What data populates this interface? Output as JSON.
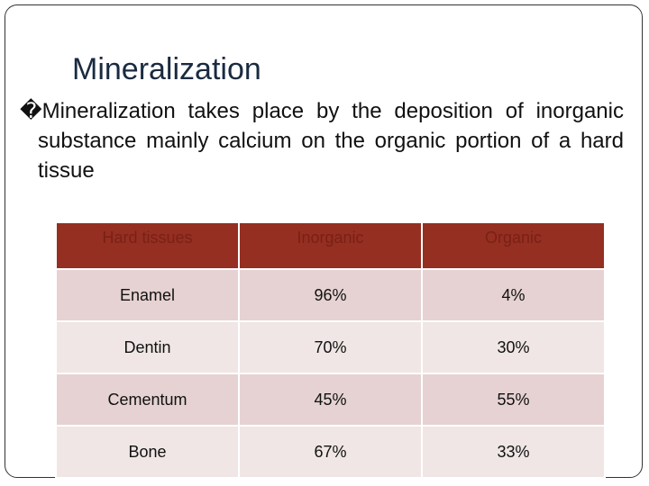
{
  "slide": {
    "title": "Mineralization",
    "body": "�Mineralization takes place by the deposition of inorganic substance mainly calcium on the organic portion of a hard tissue",
    "table": {
      "header": [
        "Hard tissues",
        "Inorganic",
        "Organic"
      ],
      "rows": [
        [
          "Enamel",
          "96%",
          "4%"
        ],
        [
          "Dentin",
          "70%",
          "30%"
        ],
        [
          "Cementum",
          "45%",
          "55%"
        ],
        [
          "Bone",
          "67%",
          "33%"
        ]
      ]
    }
  }
}
